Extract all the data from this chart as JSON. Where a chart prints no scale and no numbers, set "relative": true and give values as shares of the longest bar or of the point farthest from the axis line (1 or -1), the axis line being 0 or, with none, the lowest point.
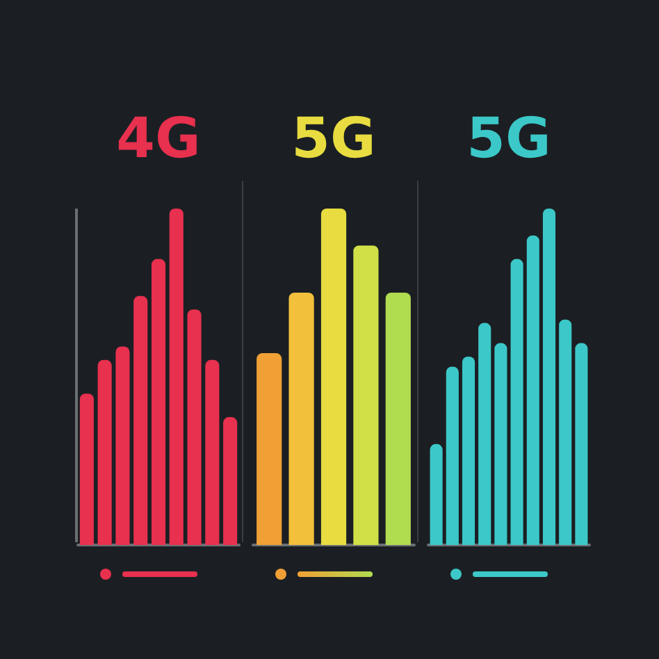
{
  "chart_data": [
    {
      "type": "bar",
      "title": "4G",
      "relative": true,
      "categories": [
        null,
        null,
        null,
        null,
        null,
        null,
        null,
        null,
        null
      ],
      "values": [
        0.45,
        0.55,
        0.59,
        0.74,
        0.85,
        1,
        0.7,
        0.55,
        0.38
      ],
      "color": "#e8304f"
    },
    {
      "type": "bar",
      "title": "5G",
      "relative": true,
      "categories": [
        null,
        null,
        null,
        null,
        null
      ],
      "values": [
        0.57,
        0.75,
        1,
        0.89,
        0.75
      ],
      "colors": [
        "#f0a035",
        "#f2c03a",
        "#e8dc40",
        "#d2e048",
        "#b0dc50"
      ]
    },
    {
      "type": "bar",
      "title": "5G",
      "relative": true,
      "categories": [
        null,
        null,
        null,
        null,
        null,
        null,
        null,
        null,
        null,
        null
      ],
      "values": [
        0.3,
        0.53,
        0.56,
        0.66,
        0.6,
        0.85,
        0.92,
        1,
        0.67,
        0.6
      ],
      "color": "#3cc8c8"
    }
  ]
}
